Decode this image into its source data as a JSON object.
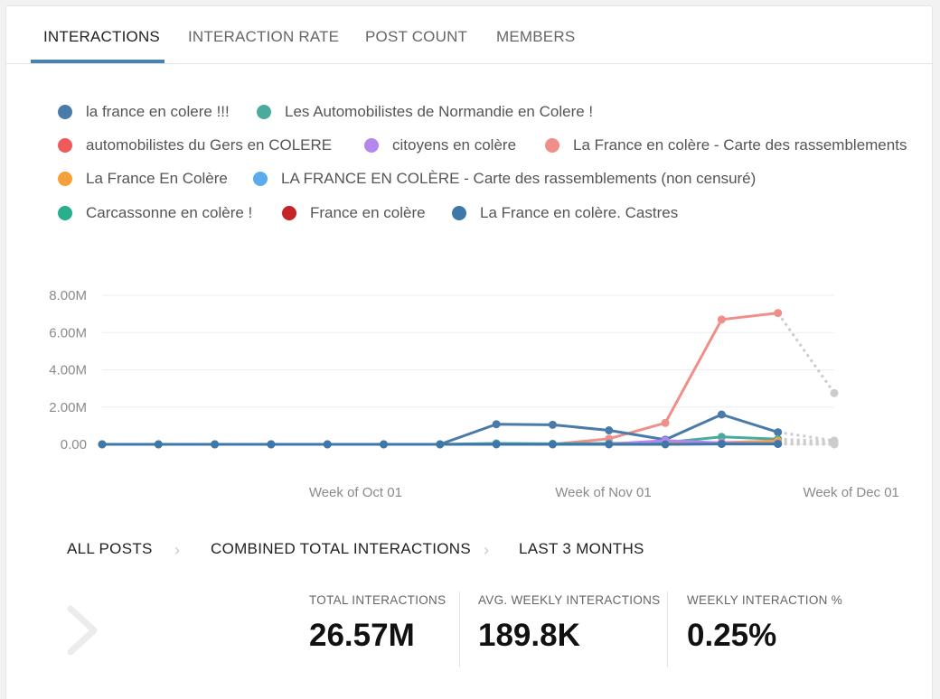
{
  "tabs": [
    {
      "label": "INTERACTIONS",
      "active": true
    },
    {
      "label": "INTERACTION RATE",
      "active": false
    },
    {
      "label": "POST COUNT",
      "active": false
    },
    {
      "label": "MEMBERS",
      "active": false
    }
  ],
  "legend": [
    {
      "label": "la france en colere !!!",
      "color": "#4a7aaa"
    },
    {
      "label": "Les Automobilistes de Normandie en Colere !",
      "color": "#4aab9d"
    },
    {
      "label": "automobilistes du Gers en COLERE",
      "color": "#ef5b5b"
    },
    {
      "label": "citoyens en colère",
      "color": "#b487ef"
    },
    {
      "label": "La France en colère - Carte des rassemblements",
      "color": "#f08f89"
    },
    {
      "label": "La France En Colère",
      "color": "#f5a03a"
    },
    {
      "label": "LA FRANCE EN COLÈRE - Carte des rassemblements (non censuré)",
      "color": "#5aacef"
    },
    {
      "label": "Carcassonne en colère !",
      "color": "#27ae8a"
    },
    {
      "label": "France en colère",
      "color": "#c52229"
    },
    {
      "label": "La France en colère. Castres",
      "color": "#3f77a8"
    }
  ],
  "chart_data": {
    "type": "line",
    "x": [
      0,
      1,
      2,
      3,
      4,
      5,
      6,
      7,
      8,
      9,
      10,
      11,
      12,
      13
    ],
    "x_tick_labels": [
      {
        "x": 4.5,
        "label": "Week of Oct 01"
      },
      {
        "x": 8.9,
        "label": "Week of Nov 01"
      },
      {
        "x": 13.3,
        "label": "Week of Dec 01"
      }
    ],
    "y_tick_labels": [
      "0.00",
      "2.00M",
      "4.00M",
      "6.00M",
      "8.00M"
    ],
    "y_ticks": [
      0,
      2,
      4,
      6,
      8
    ],
    "ylim": [
      0,
      8
    ],
    "yunit": "M",
    "dashed_color": "#cccccc",
    "series": [
      {
        "name": "La France en colère - Carte des rassemblements",
        "color": "#f08f89",
        "values": [
          null,
          null,
          null,
          null,
          null,
          null,
          null,
          null,
          0.0,
          0.3,
          1.15,
          6.7,
          7.05,
          null
        ],
        "projected": [
          [
            12,
            7.05
          ],
          [
            13,
            2.75
          ]
        ]
      },
      {
        "name": "la france en colere !!!",
        "color": "#4a7aaa",
        "values": [
          0,
          0,
          0,
          0,
          0,
          0,
          0,
          1.08,
          1.05,
          0.75,
          0.25,
          1.6,
          0.65,
          null
        ],
        "projected": [
          [
            12,
            0.65
          ],
          [
            13,
            0.2
          ]
        ]
      },
      {
        "name": "Les Automobilistes de Normandie en Colere !",
        "color": "#4aab9d",
        "values": [
          0,
          0,
          0,
          0,
          0,
          0,
          0,
          0.05,
          0.03,
          0.05,
          0.1,
          0.4,
          0.28,
          null
        ],
        "projected": [
          [
            12,
            0.28
          ],
          [
            13,
            0.15
          ]
        ]
      },
      {
        "name": "La France En Colère",
        "color": "#f5a03a",
        "values": [
          null,
          null,
          null,
          null,
          null,
          null,
          null,
          null,
          null,
          null,
          0.03,
          0.1,
          0.18,
          null
        ],
        "projected": [
          [
            12,
            0.18
          ],
          [
            13,
            0.08
          ]
        ]
      },
      {
        "name": "citoyens en colère",
        "color": "#b487ef",
        "values": [
          null,
          null,
          null,
          null,
          null,
          null,
          null,
          null,
          null,
          0.02,
          0.2,
          0.08,
          0.05,
          null
        ],
        "projected": [
          [
            12,
            0.05
          ],
          [
            13,
            0.02
          ]
        ]
      },
      {
        "name": "La France en colère. Castres",
        "color": "#3f77a8",
        "values": [
          0,
          0,
          0,
          0,
          0,
          0,
          0,
          0,
          0,
          0,
          0,
          0.02,
          0.02,
          null
        ],
        "projected": [
          [
            12,
            0.02
          ],
          [
            13,
            0.0
          ]
        ]
      }
    ]
  },
  "breadcrumb": [
    {
      "label": "ALL POSTS"
    },
    {
      "label": "COMBINED TOTAL INTERACTIONS"
    },
    {
      "label": "LAST 3 MONTHS"
    }
  ],
  "breadcrumb_separator": "›",
  "stats": [
    {
      "label": "TOTAL INTERACTIONS",
      "value": "26.57M"
    },
    {
      "label": "AVG. WEEKLY INTERACTIONS",
      "value": "189.8K"
    },
    {
      "label": "WEEKLY INTERACTION %",
      "value": "0.25%"
    }
  ]
}
